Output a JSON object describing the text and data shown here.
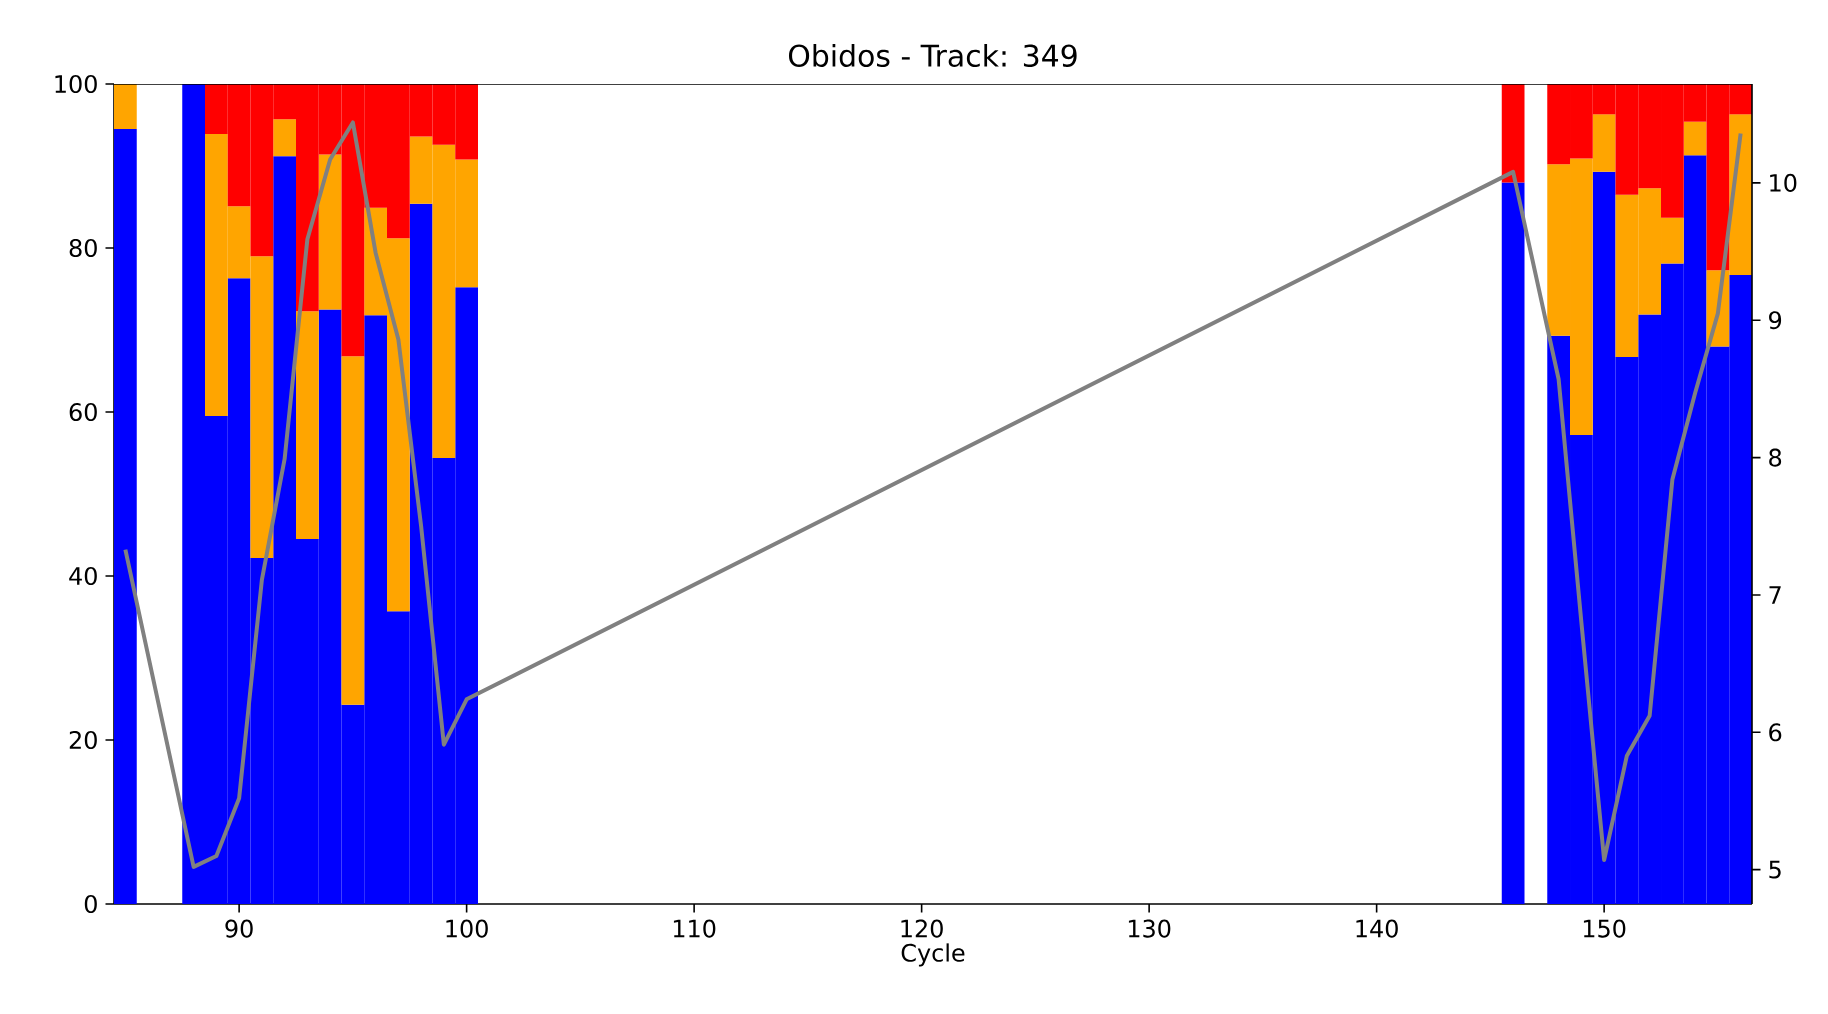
{
  "chart_data": {
    "type": "bar",
    "title": "Obidos - Track: 349",
    "xlabel": "Cycle",
    "stacked": true,
    "x": [
      85,
      88,
      89,
      90,
      91,
      92,
      93,
      94,
      95,
      96,
      97,
      98,
      99,
      100,
      146,
      148,
      149,
      150,
      151,
      152,
      153,
      154,
      155,
      156
    ],
    "series": [
      {
        "color": "#0000ff",
        "values": [
          94.5,
          100,
          59.5,
          76.3,
          42.2,
          91.2,
          44.5,
          72.5,
          24.3,
          71.8,
          35.7,
          85.4,
          54.4,
          75.2,
          88,
          69.3,
          57.2,
          89.3,
          66.7,
          71.9,
          78.1,
          91.3,
          68.0,
          76.7
        ]
      },
      {
        "color": "#ffa500",
        "values": [
          5.5,
          0,
          34.4,
          8.8,
          36.8,
          4.5,
          27.8,
          18.9,
          42.5,
          13.1,
          45.5,
          8.2,
          38.2,
          15.6,
          0,
          20.9,
          33.7,
          7.0,
          19.8,
          15.4,
          5.6,
          4.1,
          9.3,
          19.6
        ]
      },
      {
        "color": "#ff0000",
        "values": [
          0,
          0,
          6.1,
          14.9,
          21.0,
          4.3,
          27.7,
          8.6,
          33.2,
          15.1,
          18.8,
          6.4,
          7.4,
          9.2,
          12,
          9.8,
          9.1,
          3.7,
          13.5,
          12.7,
          16.3,
          4.6,
          22.7,
          3.7
        ]
      },
      {
        "type": "line",
        "axis": "y2",
        "color": "#808080",
        "values": [
          7.33,
          5.02,
          5.1,
          5.52,
          7.11,
          7.99,
          9.59,
          10.17,
          10.44,
          9.49,
          8.86,
          7.5,
          5.91,
          6.24,
          10.08,
          8.57,
          6.8,
          5.07,
          5.83,
          6.12,
          7.84,
          8.47,
          9.05,
          10.36
        ]
      }
    ],
    "xlim": [
      84.5,
      156.5
    ],
    "xticks": [
      90,
      100,
      110,
      120,
      130,
      140,
      150
    ],
    "ylim": [
      0,
      100
    ],
    "yticks": [
      0,
      20,
      40,
      60,
      80,
      100
    ],
    "y2lim": [
      4.75,
      10.72
    ],
    "y2ticks": [
      5,
      6,
      7,
      8,
      9,
      10
    ],
    "line_style": "solid",
    "marker": "none"
  }
}
